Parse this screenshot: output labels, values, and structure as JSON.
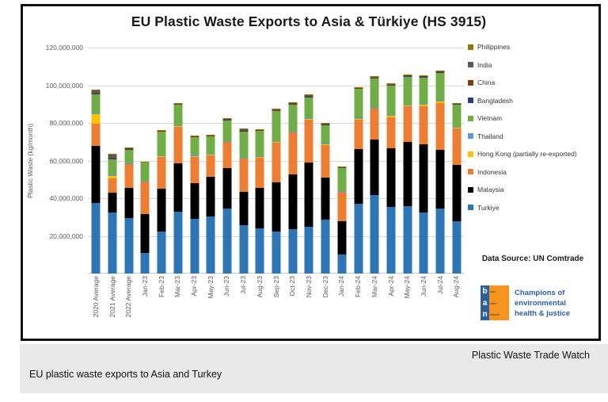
{
  "chart": {
    "title": "EU Plastic Waste Exports to Asia & Türkiye (HS 3915)",
    "y_axis_title": "Plastic Waste (kg/month)",
    "data_source": "Data Source: UN Comtrade",
    "logo": {
      "letters": [
        "b",
        "a",
        "n"
      ],
      "letter_words": [
        "asel",
        "ction",
        "etwork"
      ],
      "tagline": [
        "Champions of",
        "environmental",
        "health & justice"
      ],
      "orange": "#f7941d",
      "blue": "#2c5f9e"
    }
  },
  "footer": {
    "brand": "Plastic Waste Trade Watch",
    "caption": "EU plastic waste exports to Asia and Turkey"
  },
  "chart_data": {
    "type": "bar",
    "stacked": true,
    "stack_order": "bottom_to_top",
    "title": "EU Plastic Waste Exports to Asia & Türkiye (HS 3915)",
    "xlabel": "",
    "ylabel": "Plastic Waste (kg/month)",
    "unit": "kg/month",
    "ylim": [
      0,
      120000000
    ],
    "ytick_step": 20000000,
    "grid": true,
    "legend_position": "right",
    "yticks": [
      {
        "value": 120000000,
        "label": "120,000,000"
      },
      {
        "value": 100000000,
        "label": "100,000,000"
      },
      {
        "value": 80000000,
        "label": "80,000,000"
      },
      {
        "value": 60000000,
        "label": "60,000,000"
      },
      {
        "value": 40000000,
        "label": "40,000,000"
      },
      {
        "value": 20000000,
        "label": "20,000,000"
      }
    ],
    "categories": [
      "2020 Average",
      "2021 Average",
      "2022 Average",
      "Jan-23",
      "Feb-23",
      "Mar-23",
      "Apr-23",
      "May-23",
      "Jun-23",
      "Jul-23",
      "Aug-23",
      "Sep-23",
      "Oct-23",
      "Nov-23",
      "Dec-23",
      "Jan-24",
      "Feb-24",
      "Mar-24",
      "Apr-24",
      "May-24",
      "Jun-24",
      "Jul-24",
      "Aug-24"
    ],
    "series": [
      {
        "name": "Turkiye",
        "color": "#2e75b6",
        "values": [
          37500000,
          32500000,
          29500000,
          11000000,
          22500000,
          33000000,
          29000000,
          30500000,
          34500000,
          25500000,
          24000000,
          22500000,
          23500000,
          25000000,
          28500000,
          10000000,
          37000000,
          41500000,
          35500000,
          36000000,
          32500000,
          34500000,
          28000000
        ]
      },
      {
        "name": "Malaysia",
        "color": "#000000",
        "values": [
          30500000,
          10500000,
          16000000,
          20500000,
          22500000,
          25500000,
          19000000,
          21000000,
          21500000,
          18000000,
          21500000,
          26000000,
          29000000,
          34000000,
          22500000,
          18000000,
          29000000,
          29500000,
          31000000,
          34000000,
          36000000,
          31000000,
          29500000
        ]
      },
      {
        "name": "Indonesia",
        "color": "#ed7d31",
        "values": [
          11500000,
          7500000,
          12500000,
          17500000,
          17000000,
          19500000,
          14300000,
          11300000,
          14000000,
          17500000,
          16300000,
          21000000,
          22500000,
          23000000,
          17500000,
          15500000,
          16000000,
          16500000,
          16300000,
          19000000,
          20500000,
          25000000,
          19600000
        ]
      },
      {
        "name": "Hong Kong (partially re-exported)",
        "color": "#ffc000",
        "values": [
          5000000,
          1500000,
          400000,
          200000,
          300000,
          300000,
          200000,
          200000,
          200000,
          300000,
          200000,
          200000,
          200000,
          300000,
          200000,
          200000,
          300000,
          300000,
          1000000,
          300000,
          1000000,
          1000000,
          300000
        ]
      },
      {
        "name": "Thailand",
        "color": "#5b9bd5",
        "values": [
          500000,
          300000,
          200000,
          200000,
          500000,
          300000,
          700000,
          400000,
          200000,
          300000,
          200000,
          500000,
          300000,
          300000,
          300000,
          200000,
          300000,
          300000,
          300000,
          300000,
          300000,
          300000,
          300000
        ]
      },
      {
        "name": "Vietnam",
        "color": "#70ad47",
        "values": [
          10500000,
          8500000,
          7300000,
          9700000,
          12800000,
          11300000,
          9600000,
          9600000,
          11300000,
          14300000,
          13800000,
          16300000,
          14600000,
          11300000,
          10200000,
          12400000,
          15800000,
          15800000,
          16000000,
          15100000,
          14100000,
          15100000,
          12500000
        ]
      },
      {
        "name": "Bangladesh",
        "color": "#264478",
        "values": [
          200000,
          200000,
          100000,
          100000,
          100000,
          100000,
          100000,
          100000,
          100000,
          100000,
          100000,
          100000,
          100000,
          100000,
          100000,
          100000,
          100000,
          100000,
          100000,
          100000,
          100000,
          100000,
          100000
        ]
      },
      {
        "name": "China",
        "color": "#843c0c",
        "values": [
          300000,
          300000,
          400000,
          100000,
          200000,
          200000,
          100000,
          200000,
          300000,
          300000,
          200000,
          300000,
          200000,
          300000,
          200000,
          100000,
          100000,
          200000,
          200000,
          300000,
          200000,
          200000,
          100000
        ]
      },
      {
        "name": "India",
        "color": "#595959",
        "values": [
          1300000,
          2000000,
          400000,
          100000,
          200000,
          300000,
          200000,
          300000,
          400000,
          500000,
          400000,
          500000,
          500000,
          600000,
          400000,
          100000,
          300000,
          400000,
          400000,
          500000,
          500000,
          400000,
          200000
        ]
      },
      {
        "name": "Philippines",
        "color": "#997300",
        "values": [
          200000,
          200000,
          200000,
          100000,
          100000,
          100000,
          100000,
          100000,
          200000,
          200000,
          100000,
          100000,
          100000,
          100000,
          100000,
          100000,
          100000,
          100000,
          100000,
          100000,
          100000,
          100000,
          100000
        ]
      }
    ],
    "legend_top_to_bottom": [
      "Philippines",
      "India",
      "China",
      "Bangladesh",
      "Vietnam",
      "Thailand",
      "Hong Kong (partially re-exported)",
      "Indonesia",
      "Malaysia",
      "Turkiye"
    ]
  }
}
